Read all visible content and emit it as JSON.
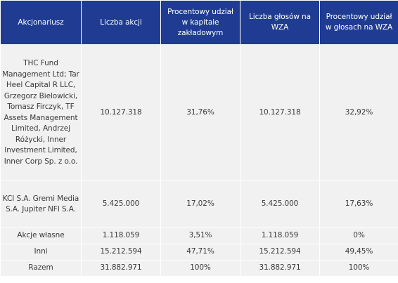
{
  "table": {
    "headers": [
      "Akcjonariusz",
      "Liczba akcji",
      "Procentowy udział w kapitale zakładowym",
      "Liczba głosów na WZA",
      "Procentowy udział w głosach na WZA"
    ],
    "rows": [
      {
        "shareholder": "THC Fund Management Ltd; Tar Heel Capital R LLC, Grzegorz Bielowicki, Tomasz Firczyk, TF Assets Management Limited, Andrzej Różycki, Inner Investment Limited, Inner Corp Sp. z o.o.",
        "shares": "10.127.318",
        "capital_pct": "31,76%",
        "votes": "10.127.318",
        "votes_pct": "32,92%"
      },
      {
        "shareholder": "KCI S.A. Gremi Media S.A. Jupiter NFI S.A.",
        "shares": "5.425.000",
        "capital_pct": "17,02%",
        "votes": "5.425.000",
        "votes_pct": "17,63%"
      },
      {
        "shareholder": "Akcje własne",
        "shares": "1.118.059",
        "capital_pct": "3,51%",
        "votes": "1.118.059",
        "votes_pct": "0%"
      },
      {
        "shareholder": "Inni",
        "shares": "15.212.594",
        "capital_pct": "47,71%",
        "votes": "15.212.594",
        "votes_pct": "49,45%"
      },
      {
        "shareholder": "Razem",
        "shares": "31.882.971",
        "capital_pct": "100%",
        "votes": "31.882.971",
        "votes_pct": "100%"
      }
    ]
  },
  "colors": {
    "header_bg": "#1f3c92",
    "header_text": "#ffffff",
    "cell_bg": "#f1f1f1",
    "cell_text": "#3a3a3a"
  }
}
